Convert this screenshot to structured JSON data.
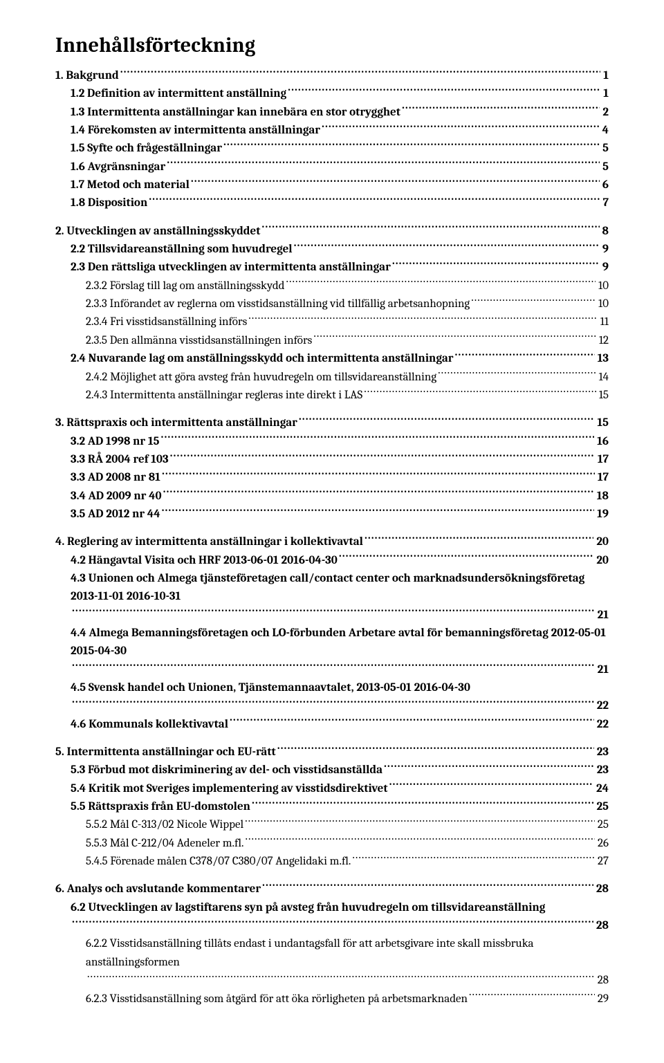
{
  "title": "Innehållsförteckning",
  "typography": {
    "title_fontsize": 30,
    "body_fontsize": 17,
    "font_family": "Cambria, 'Times New Roman', Georgia, serif",
    "text_color": "#000000",
    "background_color": "#ffffff"
  },
  "entries": [
    {
      "level": 1,
      "label": "1. Bakgrund",
      "page": "1",
      "group_start": true
    },
    {
      "level": 2,
      "label": "1.2 Definition av intermittent anställning",
      "page": "1"
    },
    {
      "level": 2,
      "label": "1.3 Intermittenta anställningar kan innebära en stor otrygghet",
      "page": "2"
    },
    {
      "level": 2,
      "label": "1.4 Förekomsten av intermittenta anställningar",
      "page": "4"
    },
    {
      "level": 2,
      "label": "1.5 Syfte och frågeställningar",
      "page": "5"
    },
    {
      "level": 2,
      "label": "1.6 Avgränsningar",
      "page": "5"
    },
    {
      "level": 2,
      "label": "1.7 Metod och material",
      "page": "6"
    },
    {
      "level": 2,
      "label": "1.8 Disposition",
      "page": "7"
    },
    {
      "level": 1,
      "label": "2. Utvecklingen av anställningsskyddet",
      "page": "8",
      "group_start": true
    },
    {
      "level": 2,
      "label": "2.2 Tillsvidareanställning som huvudregel",
      "page": "9"
    },
    {
      "level": 2,
      "label": "2.3 Den rättsliga utvecklingen av intermittenta anställningar",
      "page": "9"
    },
    {
      "level": 3,
      "label": "2.3.2 Förslag till lag om anställningsskydd",
      "page": "10"
    },
    {
      "level": 3,
      "label": "2.3.3 Införandet av reglerna om visstidsanställning vid tillfällig arbetsanhopning",
      "page": "10"
    },
    {
      "level": 3,
      "label": "2.3.4 Fri visstidsanställning införs",
      "page": "11"
    },
    {
      "level": 3,
      "label": "2.3.5 Den allmänna visstidsanställningen införs",
      "page": "12"
    },
    {
      "level": 2,
      "label": "2.4 Nuvarande lag om anställningsskydd och intermittenta anställningar",
      "page": "13"
    },
    {
      "level": 3,
      "label": "2.4.2 Möjlighet att göra avsteg från huvudregeln om tillsvidareanställning",
      "page": "14"
    },
    {
      "level": 3,
      "label": "2.4.3 Intermittenta anställningar regleras inte direkt i LAS",
      "page": "15"
    },
    {
      "level": 1,
      "label": "3. Rättspraxis och intermittenta anställningar",
      "page": "15",
      "group_start": true
    },
    {
      "level": 2,
      "label": "3.2 AD 1998 nr 15",
      "page": "16"
    },
    {
      "level": 2,
      "label": "3.3 RÅ 2004 ref 103",
      "page": "17"
    },
    {
      "level": 2,
      "label": "3.3 AD 2008 nr 81",
      "page": "17"
    },
    {
      "level": 2,
      "label": "3.4 AD 2009 nr 40",
      "page": "18"
    },
    {
      "level": 2,
      "label": "3.5 AD 2012 nr 44",
      "page": "19"
    },
    {
      "level": 1,
      "label": "4. Reglering av intermittenta anställningar i kollektivavtal",
      "page": "20",
      "group_start": true
    },
    {
      "level": 2,
      "label": "4.2 Hängavtal Visita och HRF 2013-06-01 2016-04-30",
      "page": "20"
    },
    {
      "level": 2,
      "label": "4.3 Unionen och Almega tjänsteföretagen call/contact center och marknadsundersökningsföretag 2013-11-01 2016-10-31",
      "page": "21",
      "wrap": true
    },
    {
      "level": 2,
      "label": "4.4 Almega Bemanningsföretagen och LO-förbunden Arbetare avtal för bemanningsföretag 2012-05-01 2015-04-30",
      "page": "21",
      "wrap": true
    },
    {
      "level": 2,
      "label": "4.5 Svensk handel och Unionen, Tjänstemannaavtalet, 2013-05-01 2016-04-30",
      "page": "22",
      "wrap": true,
      "leading_dots_on_second_line": true
    },
    {
      "level": 2,
      "label": "4.6 Kommunals kollektivavtal",
      "page": "22"
    },
    {
      "level": 1,
      "label": "5. Intermittenta anställningar och EU-rätt",
      "page": "23",
      "group_start": true
    },
    {
      "level": 2,
      "label": "5.3 Förbud mot diskriminering av del- och visstidsanställda",
      "page": "23"
    },
    {
      "level": 2,
      "label": "5.4 Kritik mot Sveriges implementering av visstidsdirektivet",
      "page": "24"
    },
    {
      "level": 2,
      "label": "5.5 Rättspraxis från EU-domstolen",
      "page": "25"
    },
    {
      "level": 3,
      "label": "5.5.2 Mål C-313/02 Nicole Wippel",
      "page": "25"
    },
    {
      "level": 3,
      "label": "5.5.3 Mål C-212/04 Adeneler m.fl.",
      "page": "26"
    },
    {
      "level": 3,
      "label": "5.4.5 Förenade målen C378/07 C380/07 Angelidaki m.fl.",
      "page": "27"
    },
    {
      "level": 1,
      "label": "6. Analys och avslutande kommentarer",
      "page": "28",
      "group_start": true
    },
    {
      "level": 2,
      "label": "6.2 Utvecklingen av lagstiftarens syn på avsteg från huvudregeln om tillsvidareanställning",
      "page": "28",
      "wrap": true
    },
    {
      "level": 3,
      "label": "6.2.2 Visstidsanställning tillåts endast i undantagsfall för att arbetsgivare inte skall missbruka anställningsformen",
      "page": "28",
      "wrap": true
    },
    {
      "level": 3,
      "label": "6.2.3 Visstidsanställning som åtgärd för att öka rörligheten på arbetsmarknaden",
      "page": "29"
    }
  ]
}
